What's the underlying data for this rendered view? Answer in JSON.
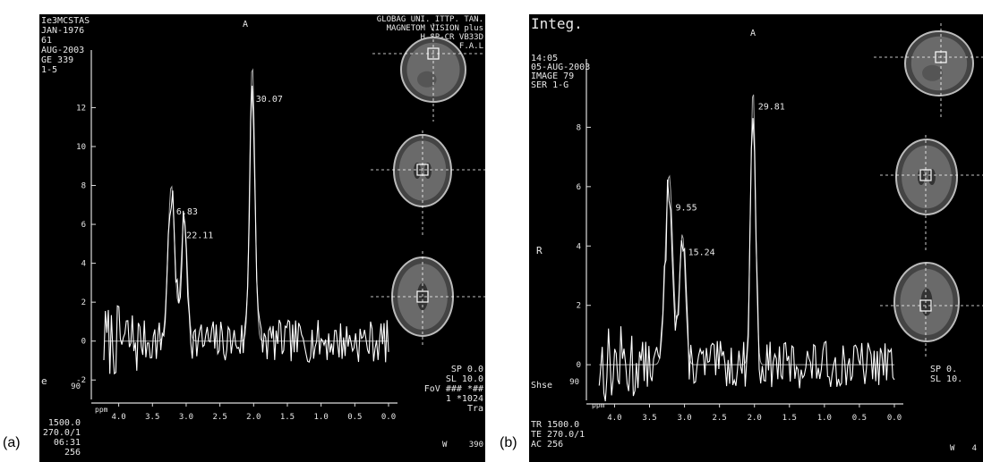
{
  "panel_labels": [
    "(a)",
    "(b)"
  ],
  "chart_data": [
    {
      "type": "line",
      "panel": "(a)",
      "xlim": [
        4.3,
        0.0
      ],
      "ylim": [
        -3,
        14.5
      ],
      "xticks": [
        4.0,
        3.5,
        3.0,
        2.5,
        2.0,
        1.5,
        1.0,
        0.5,
        0.0
      ],
      "xtick_labels": [
        "4.0",
        "3.5",
        "3.0",
        "2.5",
        "2.0",
        "1.5",
        "1.0",
        "0.5",
        "0.0"
      ],
      "yticks": [
        -2,
        0,
        2,
        4,
        6,
        8,
        10,
        12
      ],
      "ytick_labels": [
        "-2",
        "0",
        "2",
        "4",
        "6",
        "8",
        "10",
        "12"
      ],
      "peaks": [
        {
          "x": 3.22,
          "y": 8.0,
          "w": 0.07
        },
        {
          "x": 3.03,
          "y": 6.3,
          "w": 0.065
        },
        {
          "x": 2.02,
          "y": 14.2,
          "w": 0.055
        }
      ],
      "baseline": 0,
      "noise_amp": 1.1,
      "seed": 7,
      "annotations": [
        {
          "text": "6.83",
          "x": 3.2,
          "y": 6.5
        },
        {
          "text": "22.11",
          "x": 3.05,
          "y": 5.3
        },
        {
          "text": "30.07",
          "x": 2.02,
          "y": 12.3
        }
      ],
      "header_left": [
        "Ie3MCSTAS",
        "JAN-1976",
        "61",
        "AUG-2003",
        "GE 339",
        "1-5"
      ],
      "header_center": "A",
      "header_right": [
        "GLOBAG UNI. ITTP. TAN.",
        "MAGNETOM VISION plus",
        "H-SP-CR  VB33D",
        "F.A.L"
      ],
      "side_letter": "e",
      "footer_left": [
        "1500.0",
        "270.0/1",
        "06:31",
        "256"
      ],
      "footer_right": [
        "SP   0.0",
        "SL  10.0",
        "FoV ### *##",
        "1  *1024",
        "Tra"
      ],
      "ppm_label": "ppm",
      "tick_90": "90",
      "corner_value": "390",
      "w_label": "W"
    },
    {
      "type": "line",
      "panel": "(b)",
      "xlim": [
        4.3,
        0.0
      ],
      "ylim": [
        -1.2,
        10.0
      ],
      "xticks": [
        4.0,
        3.5,
        3.0,
        2.5,
        2.0,
        1.5,
        1.0,
        0.5,
        0.0
      ],
      "xtick_labels": [
        "4.0",
        "3.5",
        "3.0",
        "2.5",
        "2.0",
        "1.5",
        "1.0",
        "0.5",
        "0.0"
      ],
      "yticks": [
        0,
        2,
        4,
        6,
        8
      ],
      "ytick_labels": [
        "0",
        "2",
        "4",
        "6",
        "8"
      ],
      "peaks": [
        {
          "x": 3.22,
          "y": 6.4,
          "w": 0.075
        },
        {
          "x": 3.03,
          "y": 4.4,
          "w": 0.06
        },
        {
          "x": 2.02,
          "y": 9.3,
          "w": 0.05
        }
      ],
      "baseline": 0,
      "noise_amp": 0.8,
      "seed": 13,
      "annotations": [
        {
          "text": "9.55",
          "x": 3.18,
          "y": 5.2
        },
        {
          "text": "15.24",
          "x": 3.0,
          "y": 3.7
        },
        {
          "text": "29.81",
          "x": 2.0,
          "y": 8.6
        }
      ],
      "header_left": [
        "Integ.",
        "14:05",
        "05-AUG-2003",
        "IMAGE 79",
        "SER 1-G"
      ],
      "header_center": "A",
      "side_letter": "R",
      "shse_label": "Shse",
      "footer_left": [
        "TR  1500.0",
        "TE  270.0/1",
        "AC    256"
      ],
      "footer_right": [
        "SP   0.",
        "SL  10."
      ],
      "ppm_label": "ppm",
      "tick_90": "90",
      "corner_value": "4",
      "w_label": "W"
    }
  ]
}
